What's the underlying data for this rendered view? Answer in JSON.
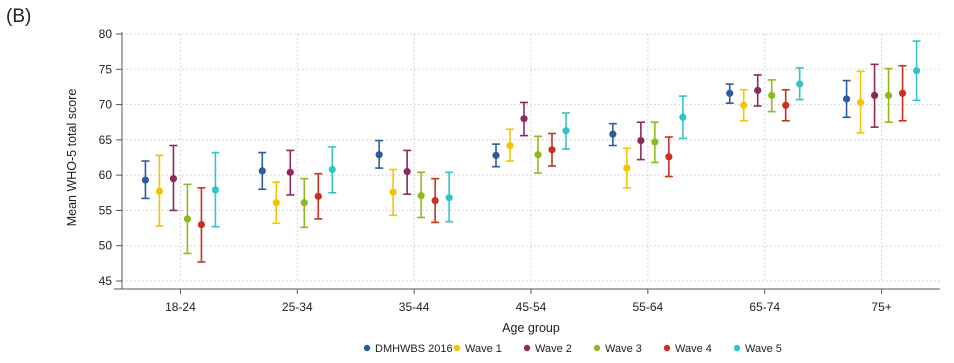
{
  "panel_label": "(B)",
  "chart_data": {
    "type": "scatter",
    "subtype": "error-bars",
    "xlabel": "Age group",
    "ylabel": "Mean WHO-5 total score",
    "ylim": [
      45,
      80
    ],
    "yticks": [
      45,
      50,
      55,
      60,
      65,
      70,
      75,
      80
    ],
    "grid": "dotted",
    "legend_position": "bottom",
    "categories": [
      "18-24",
      "25-34",
      "35-44",
      "45-54",
      "55-64",
      "65-74",
      "75+"
    ],
    "series": [
      {
        "name": "DMHWBS 2016",
        "color": "#2c5c9c",
        "values": [
          59.3,
          60.6,
          62.9,
          62.8,
          65.8,
          71.6,
          70.8
        ],
        "lower": [
          56.7,
          58.0,
          61.0,
          61.2,
          64.2,
          70.2,
          68.2
        ],
        "upper": [
          62.0,
          63.2,
          64.9,
          64.4,
          67.3,
          72.9,
          73.4
        ]
      },
      {
        "name": "Wave 1",
        "color": "#f5c400",
        "values": [
          57.7,
          56.1,
          57.6,
          64.2,
          61.0,
          69.9,
          70.3
        ],
        "lower": [
          52.8,
          53.2,
          54.3,
          62.0,
          58.2,
          67.7,
          66.0
        ],
        "upper": [
          62.8,
          59.0,
          60.8,
          66.5,
          63.8,
          72.1,
          74.7
        ]
      },
      {
        "name": "Wave 2",
        "color": "#8c2a5c",
        "values": [
          59.5,
          60.4,
          60.5,
          68.0,
          64.9,
          72.0,
          71.3
        ],
        "lower": [
          55.0,
          57.2,
          57.3,
          65.6,
          62.2,
          69.8,
          66.8
        ],
        "upper": [
          64.2,
          63.5,
          63.5,
          70.3,
          67.5,
          74.2,
          75.7
        ]
      },
      {
        "name": "Wave 3",
        "color": "#8fba1e",
        "values": [
          53.8,
          56.1,
          57.1,
          62.9,
          64.7,
          71.3,
          71.3
        ],
        "lower": [
          48.9,
          52.6,
          54.0,
          60.3,
          61.8,
          69.0,
          67.5
        ],
        "upper": [
          58.7,
          59.5,
          60.4,
          65.5,
          67.5,
          73.5,
          75.1
        ]
      },
      {
        "name": "Wave 4",
        "color": "#c8321e",
        "values": [
          53.0,
          57.0,
          56.4,
          63.6,
          62.6,
          69.9,
          71.6
        ],
        "lower": [
          47.7,
          53.8,
          53.3,
          61.3,
          59.8,
          67.7,
          67.7
        ],
        "upper": [
          58.2,
          60.2,
          59.5,
          65.9,
          65.4,
          72.1,
          75.5
        ]
      },
      {
        "name": "Wave 5",
        "color": "#33c4c8",
        "values": [
          57.9,
          60.8,
          56.8,
          66.3,
          68.2,
          72.9,
          74.8
        ],
        "lower": [
          52.7,
          57.5,
          53.4,
          63.7,
          65.2,
          70.7,
          70.6
        ],
        "upper": [
          63.2,
          64.0,
          60.4,
          68.8,
          71.2,
          75.2,
          79.0
        ]
      }
    ]
  }
}
